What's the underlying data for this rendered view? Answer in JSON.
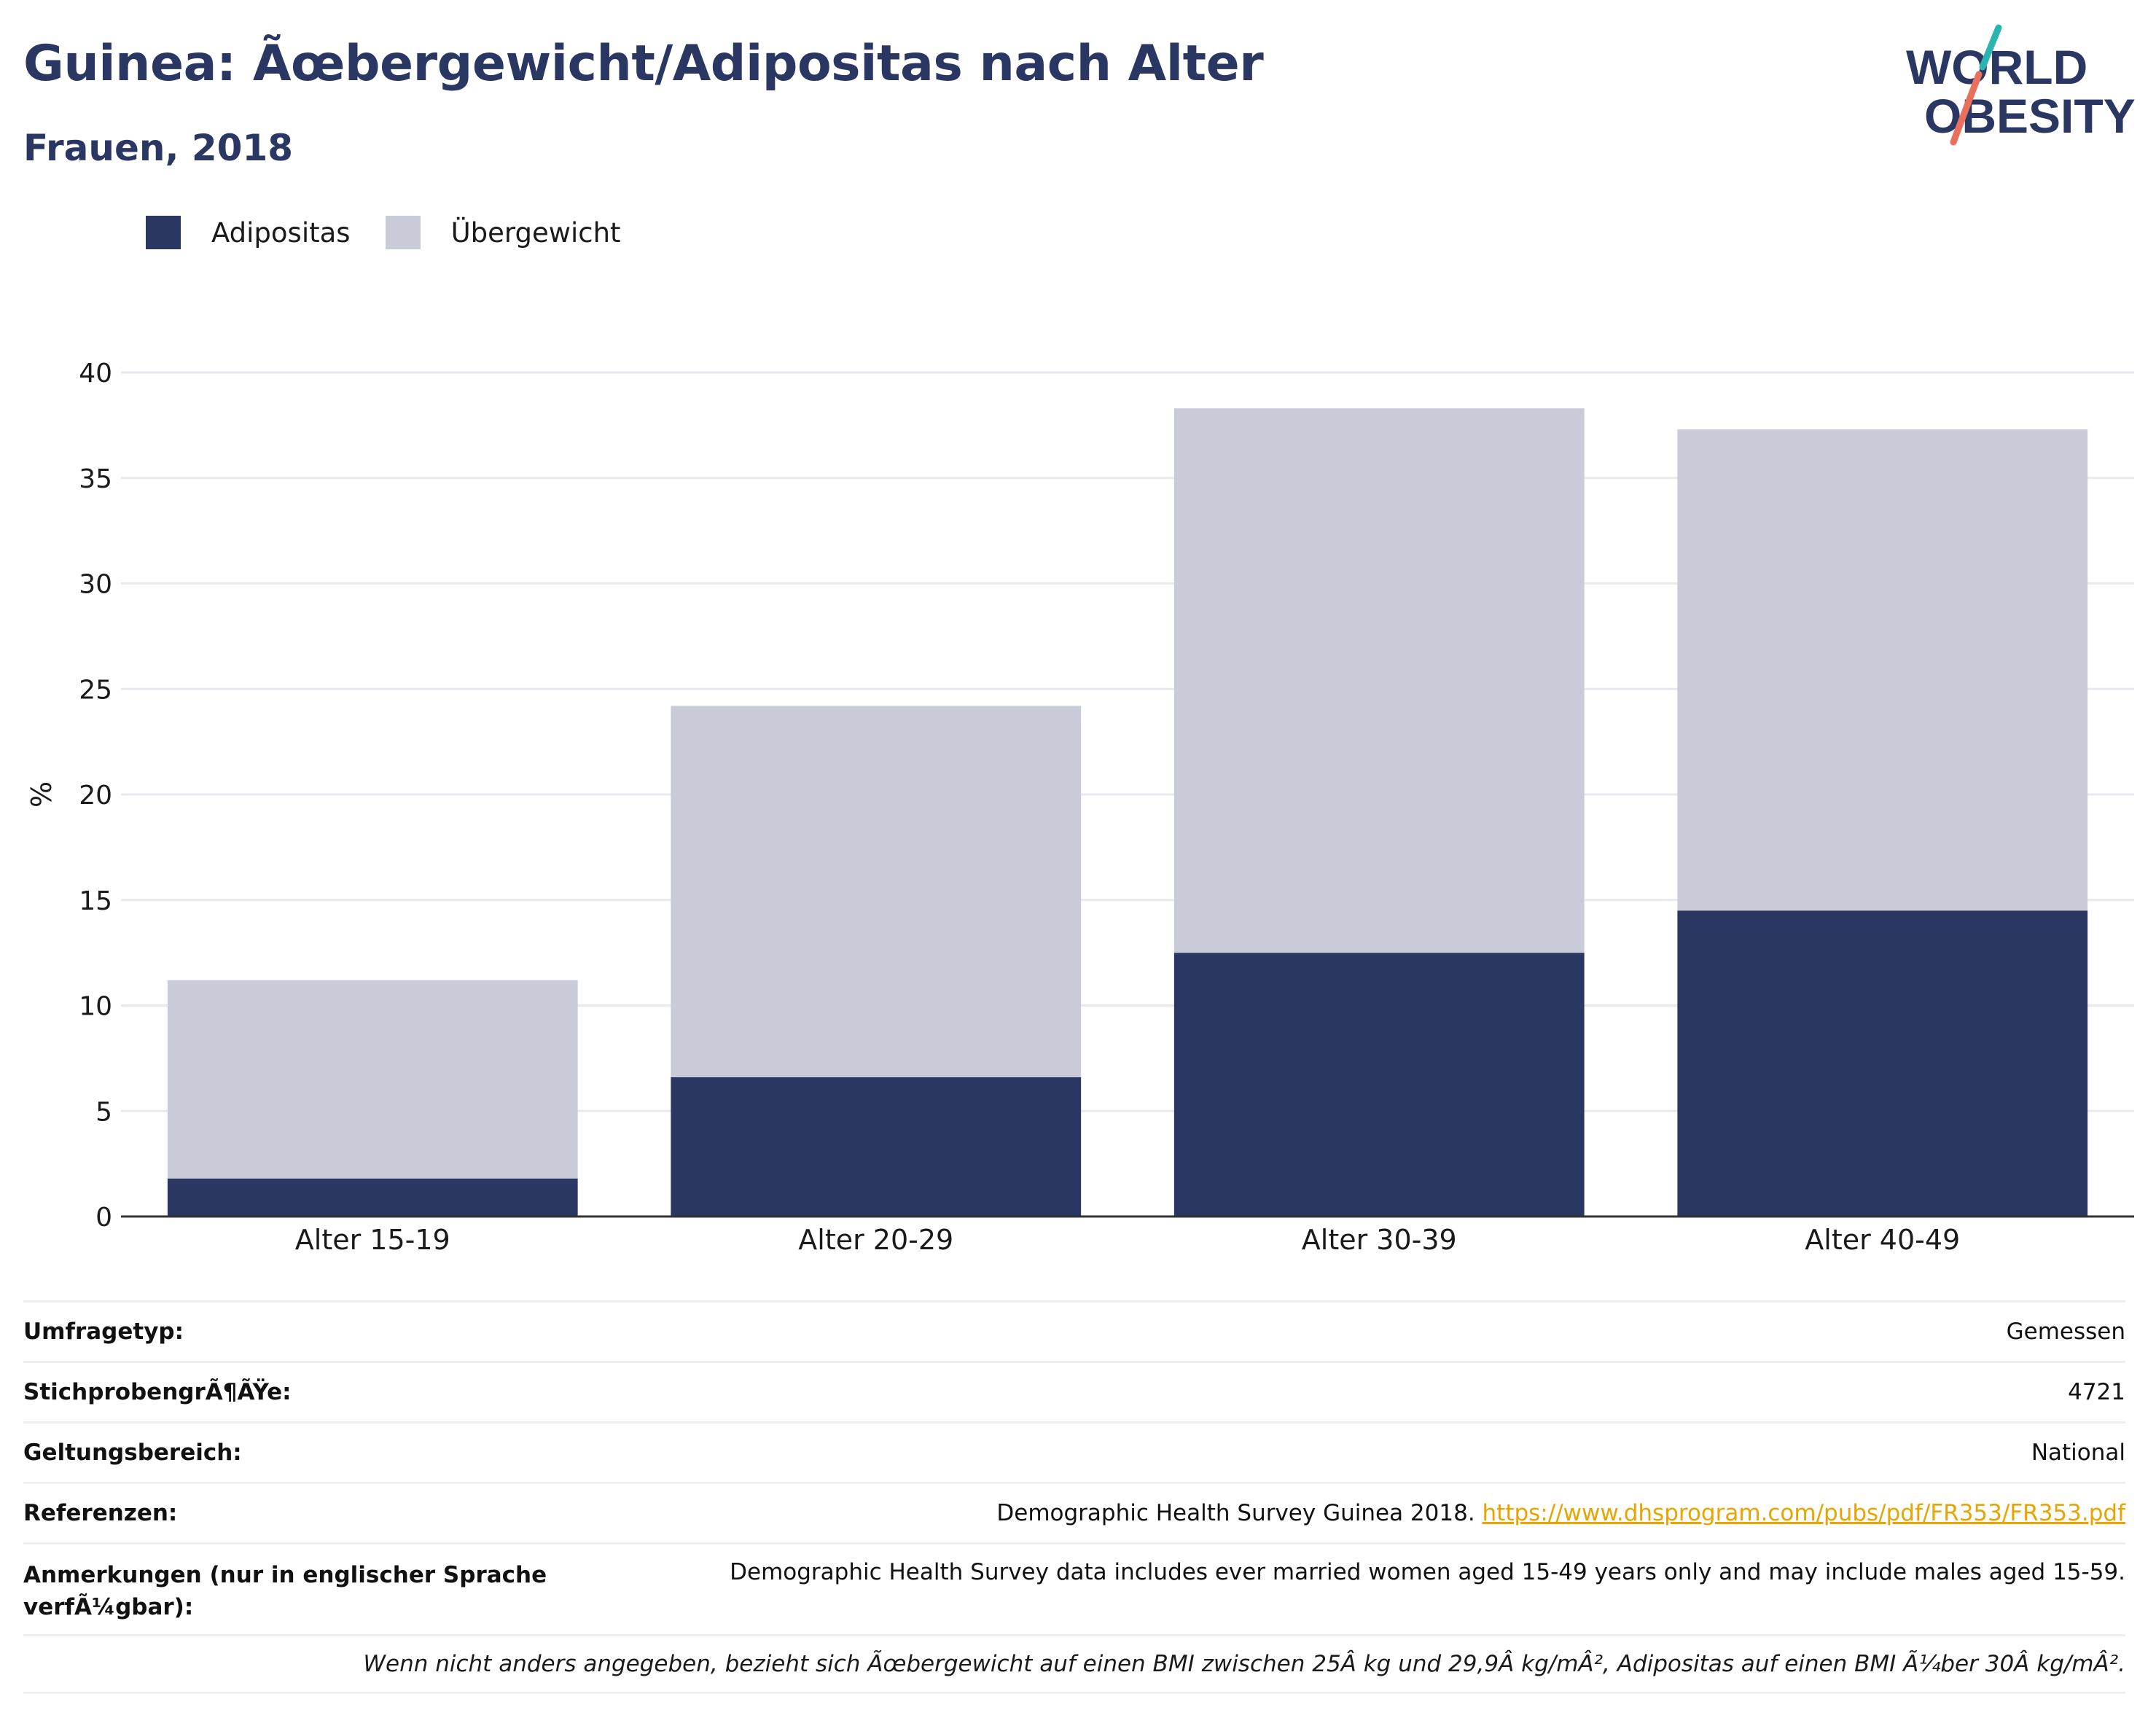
{
  "header": {
    "title": "Guinea: Ãœbergewicht/Adipositas nach Alter",
    "subtitle": "Frauen, 2018"
  },
  "logo": {
    "line1": "WORLD",
    "line2": "OBESITY",
    "colors": {
      "text": "#2b3763",
      "slash_top": "#2bb5b0",
      "slash_bottom": "#e8705c"
    }
  },
  "legend": [
    {
      "label": "Adipositas",
      "color": "#2b3763"
    },
    {
      "label": "Übergewicht",
      "color": "#c9ccd8"
    }
  ],
  "chart_data": {
    "type": "bar",
    "stacked": true,
    "categories": [
      "Alter 15-19",
      "Alter 20-29",
      "Alter 30-39",
      "Alter 40-49"
    ],
    "series": [
      {
        "name": "Adipositas",
        "values": [
          1.8,
          6.6,
          12.5,
          14.5
        ],
        "color": "#2b3763"
      },
      {
        "name": "Übergewicht",
        "values": [
          9.4,
          17.6,
          25.8,
          22.8
        ],
        "color": "#c9ccd8"
      }
    ],
    "ylabel": "%",
    "ylim": [
      0,
      40
    ],
    "yticks": [
      0,
      5,
      10,
      15,
      20,
      25,
      30,
      35,
      40
    ],
    "grid": true,
    "legend_position": "top-left"
  },
  "metadata": {
    "rows": [
      {
        "key": "Umfragetyp:",
        "value": "Gemessen"
      },
      {
        "key": "StichprobengrÃ¶ÃŸe:",
        "value": "4721"
      },
      {
        "key": "Geltungsbereich:",
        "value": "National"
      },
      {
        "key": "Referenzen:",
        "value": "Demographic Health Survey Guinea 2018. ",
        "link": "https://www.dhsprogram.com/pubs/pdf/FR353/FR353.pdf"
      },
      {
        "key": "Anmerkungen (nur in englischer Sprache verfÃ¼gbar):",
        "value": "Demographic Health Survey data includes ever married women aged 15-49 years only and may include males aged 15-59."
      }
    ],
    "footnote": "Wenn nicht anders angegeben, bezieht sich Ãœbergewicht auf einen BMI zwischen 25Â kg und 29,9Â kg/mÂ², Adipositas auf einen BMI Ã¼ber 30Â kg/mÂ²."
  }
}
